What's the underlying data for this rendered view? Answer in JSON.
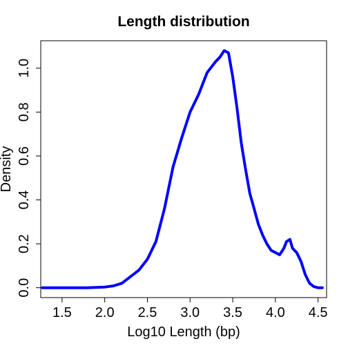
{
  "chart_data": {
    "type": "line",
    "title": "Length distribution",
    "xlabel": "Log10 Length (bp)",
    "ylabel": "Density",
    "xlim": [
      1.25,
      4.6
    ],
    "ylim": [
      -0.045,
      1.125
    ],
    "x_ticks": [
      1.5,
      2.0,
      2.5,
      3.0,
      3.5,
      4.0,
      4.5
    ],
    "x_tick_labels": [
      "1.5",
      "2.0",
      "2.5",
      "3.0",
      "3.5",
      "4.0",
      "4.5"
    ],
    "y_ticks": [
      0.0,
      0.2,
      0.4,
      0.6,
      0.8,
      1.0
    ],
    "y_tick_labels": [
      "0.0",
      "0.2",
      "0.4",
      "0.6",
      "0.8",
      "1.0"
    ],
    "grid": false,
    "legend": "none",
    "line_color": "#0000ff",
    "series": [
      {
        "x": [
          1.27,
          1.4,
          1.6,
          1.8,
          2.0,
          2.1,
          2.2,
          2.3,
          2.4,
          2.5,
          2.6,
          2.7,
          2.8,
          2.9,
          3.0,
          3.1,
          3.2,
          3.3,
          3.35,
          3.4,
          3.45,
          3.5,
          3.55,
          3.6,
          3.65,
          3.7,
          3.75,
          3.8,
          3.85,
          3.9,
          3.95,
          4.0,
          4.05,
          4.1,
          4.13,
          4.17,
          4.2,
          4.25,
          4.3,
          4.35,
          4.4,
          4.45,
          4.5,
          4.55
        ],
        "values": [
          0.0,
          0.0,
          0.0,
          0.0,
          0.003,
          0.008,
          0.02,
          0.05,
          0.08,
          0.13,
          0.21,
          0.36,
          0.55,
          0.68,
          0.8,
          0.88,
          0.98,
          1.03,
          1.05,
          1.08,
          1.07,
          0.96,
          0.82,
          0.66,
          0.54,
          0.43,
          0.36,
          0.29,
          0.24,
          0.2,
          0.17,
          0.16,
          0.15,
          0.18,
          0.21,
          0.22,
          0.18,
          0.16,
          0.12,
          0.06,
          0.02,
          0.005,
          0.0,
          0.0
        ]
      }
    ]
  }
}
